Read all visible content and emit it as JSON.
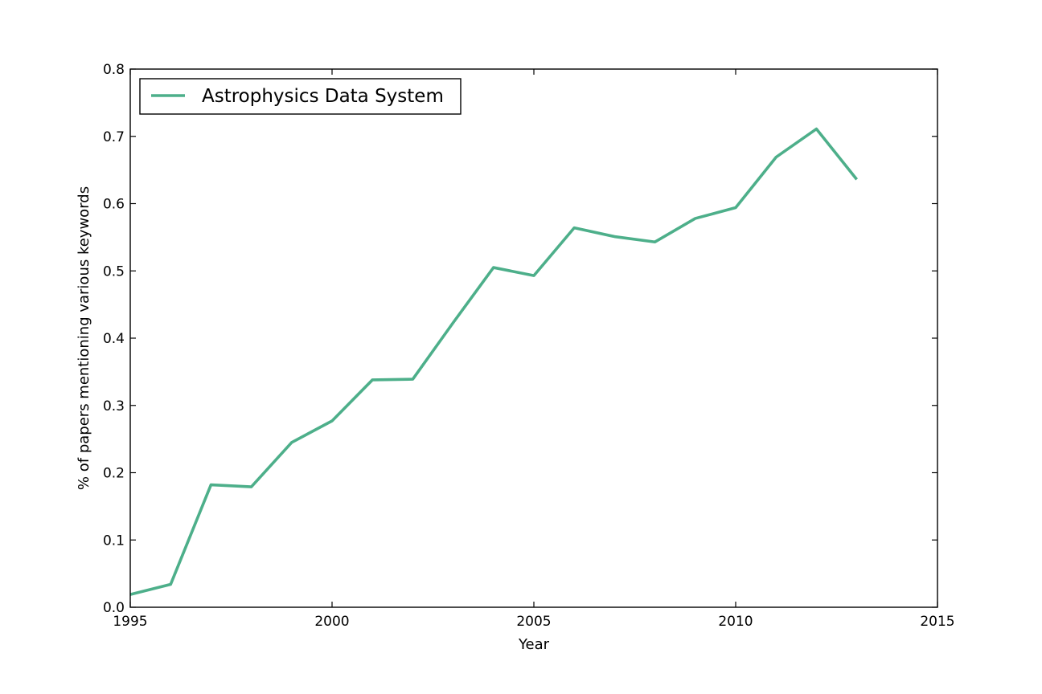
{
  "chart_data": {
    "type": "line",
    "title": "",
    "xlabel": "Year",
    "ylabel": "% of papers mentioning various keywords",
    "xlim": [
      1995,
      2015
    ],
    "ylim": [
      0.0,
      0.8
    ],
    "xticks": [
      1995,
      2000,
      2005,
      2010,
      2015
    ],
    "xtick_labels": [
      "1995",
      "2000",
      "2005",
      "2010",
      "2015"
    ],
    "yticks": [
      0.0,
      0.1,
      0.2,
      0.3,
      0.4,
      0.5,
      0.6,
      0.7,
      0.8
    ],
    "ytick_labels": [
      "0.0",
      "0.1",
      "0.2",
      "0.3",
      "0.4",
      "0.5",
      "0.6",
      "0.7",
      "0.8"
    ],
    "grid": false,
    "legend_position": "top-left",
    "series": [
      {
        "name": "Astrophysics Data System",
        "color": "#4daf8a",
        "x": [
          1995,
          1996,
          1997,
          1998,
          1999,
          2000,
          2001,
          2002,
          2003,
          2004,
          2005,
          2006,
          2007,
          2008,
          2009,
          2010,
          2011,
          2012,
          2013
        ],
        "y": [
          0.019,
          0.034,
          0.182,
          0.179,
          0.245,
          0.277,
          0.338,
          0.339,
          0.423,
          0.505,
          0.493,
          0.564,
          0.551,
          0.543,
          0.578,
          0.594,
          0.669,
          0.711,
          0.636
        ]
      }
    ]
  }
}
